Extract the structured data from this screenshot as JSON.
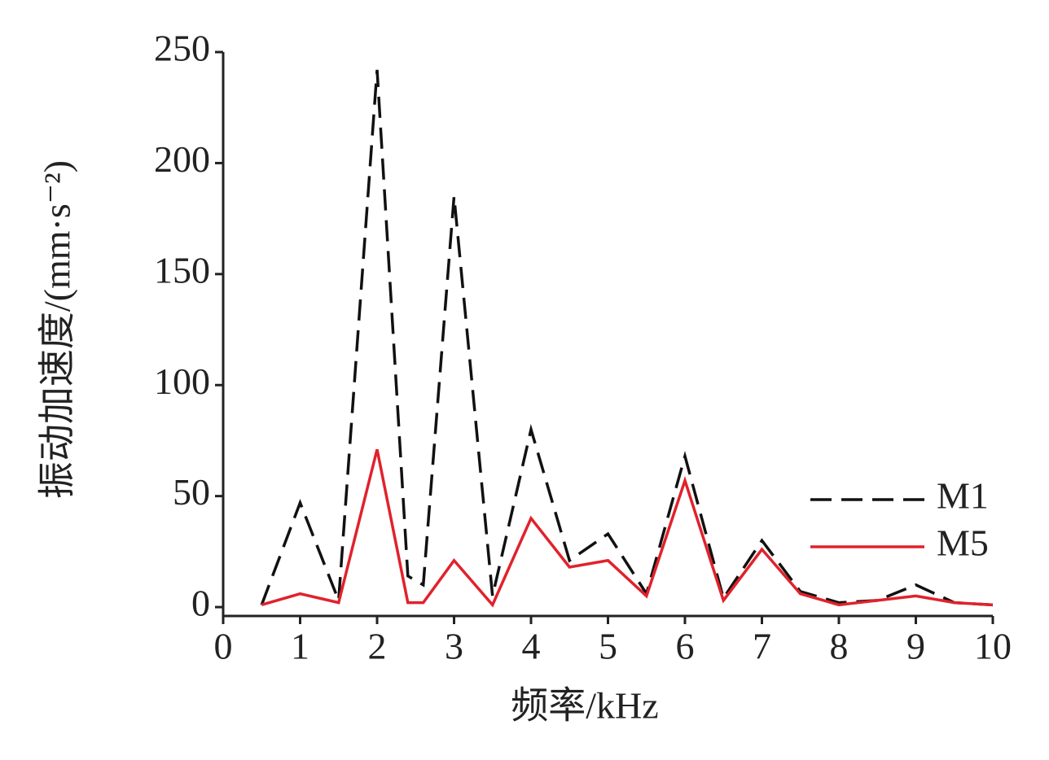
{
  "chart_data": {
    "type": "line",
    "x_label": "频率/kHz",
    "y_label": "振动加速度/(mm·s⁻²)",
    "x": [
      0.5,
      1,
      1.5,
      2,
      2.4,
      2.6,
      3,
      3.5,
      4,
      4.5,
      5,
      5.5,
      6,
      6.5,
      7,
      7.5,
      8,
      8.5,
      9,
      9.5,
      10
    ],
    "series": [
      {
        "name": "M1",
        "color": "#111111",
        "dash": true,
        "values": [
          1,
          47,
          3,
          242,
          14,
          10,
          185,
          5,
          80,
          21,
          33,
          6,
          68,
          4,
          30,
          7,
          2,
          3,
          10,
          2,
          1
        ]
      },
      {
        "name": "M5",
        "color": "#e0222c",
        "dash": false,
        "values": [
          1,
          6,
          2,
          71,
          2,
          2,
          21,
          1,
          40,
          18,
          21,
          5,
          57,
          3,
          26,
          6,
          1,
          3,
          5,
          2,
          1
        ]
      }
    ],
    "xlim": [
      0,
      10
    ],
    "xticks": [
      0,
      1,
      2,
      3,
      4,
      5,
      6,
      7,
      8,
      9,
      10
    ],
    "ylim": [
      -4,
      250
    ],
    "yticks": [
      0,
      50,
      100,
      150,
      200,
      250
    ],
    "legend": "right"
  }
}
